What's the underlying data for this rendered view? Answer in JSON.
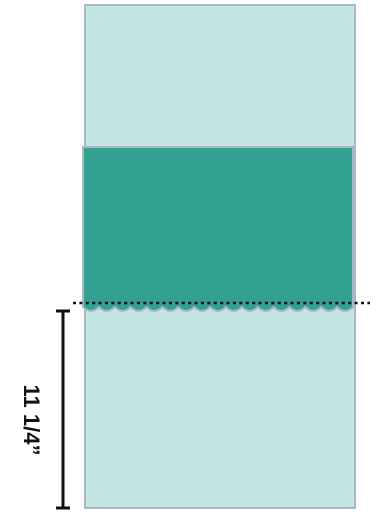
{
  "diagram": {
    "dimension_label": "11 1/4”",
    "colors": {
      "panel_fill": "#c4e6e3",
      "panel_border": "#a9b7c6",
      "band_fill": "#33a191",
      "guide_line": "#111111",
      "dimension_line": "#111111"
    }
  }
}
